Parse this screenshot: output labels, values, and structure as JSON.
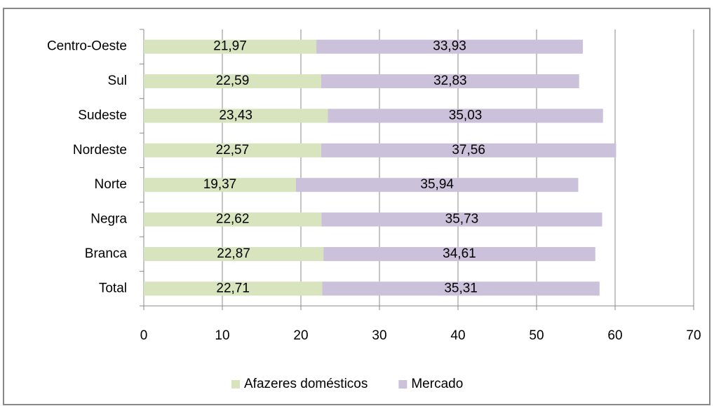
{
  "chart_data": {
    "type": "stacked-bar-horizontal",
    "categories": [
      "Centro-Oeste",
      "Sul",
      "Sudeste",
      "Nordeste",
      "Norte",
      "Negra",
      "Branca",
      "Total"
    ],
    "series": [
      {
        "name": "Afazeres domésticos",
        "color": "#d7e4bd",
        "values": [
          21.97,
          22.59,
          23.43,
          22.57,
          19.37,
          22.62,
          22.87,
          22.71
        ],
        "value_labels": [
          "21,97",
          "22,59",
          "23,43",
          "22,57",
          "19,37",
          "22,62",
          "22,87",
          "22,71"
        ]
      },
      {
        "name": "Mercado",
        "color": "#ccc1da",
        "values": [
          33.93,
          32.83,
          35.03,
          37.56,
          35.94,
          35.73,
          34.61,
          35.31
        ],
        "value_labels": [
          "33,93",
          "32,83",
          "35,03",
          "37,56",
          "35,94",
          "35,73",
          "34,61",
          "35,31"
        ]
      }
    ],
    "xlim": [
      0,
      70
    ],
    "xticks": [
      0,
      10,
      20,
      30,
      40,
      50,
      60,
      70
    ],
    "grid": true,
    "legend": "bottom"
  }
}
